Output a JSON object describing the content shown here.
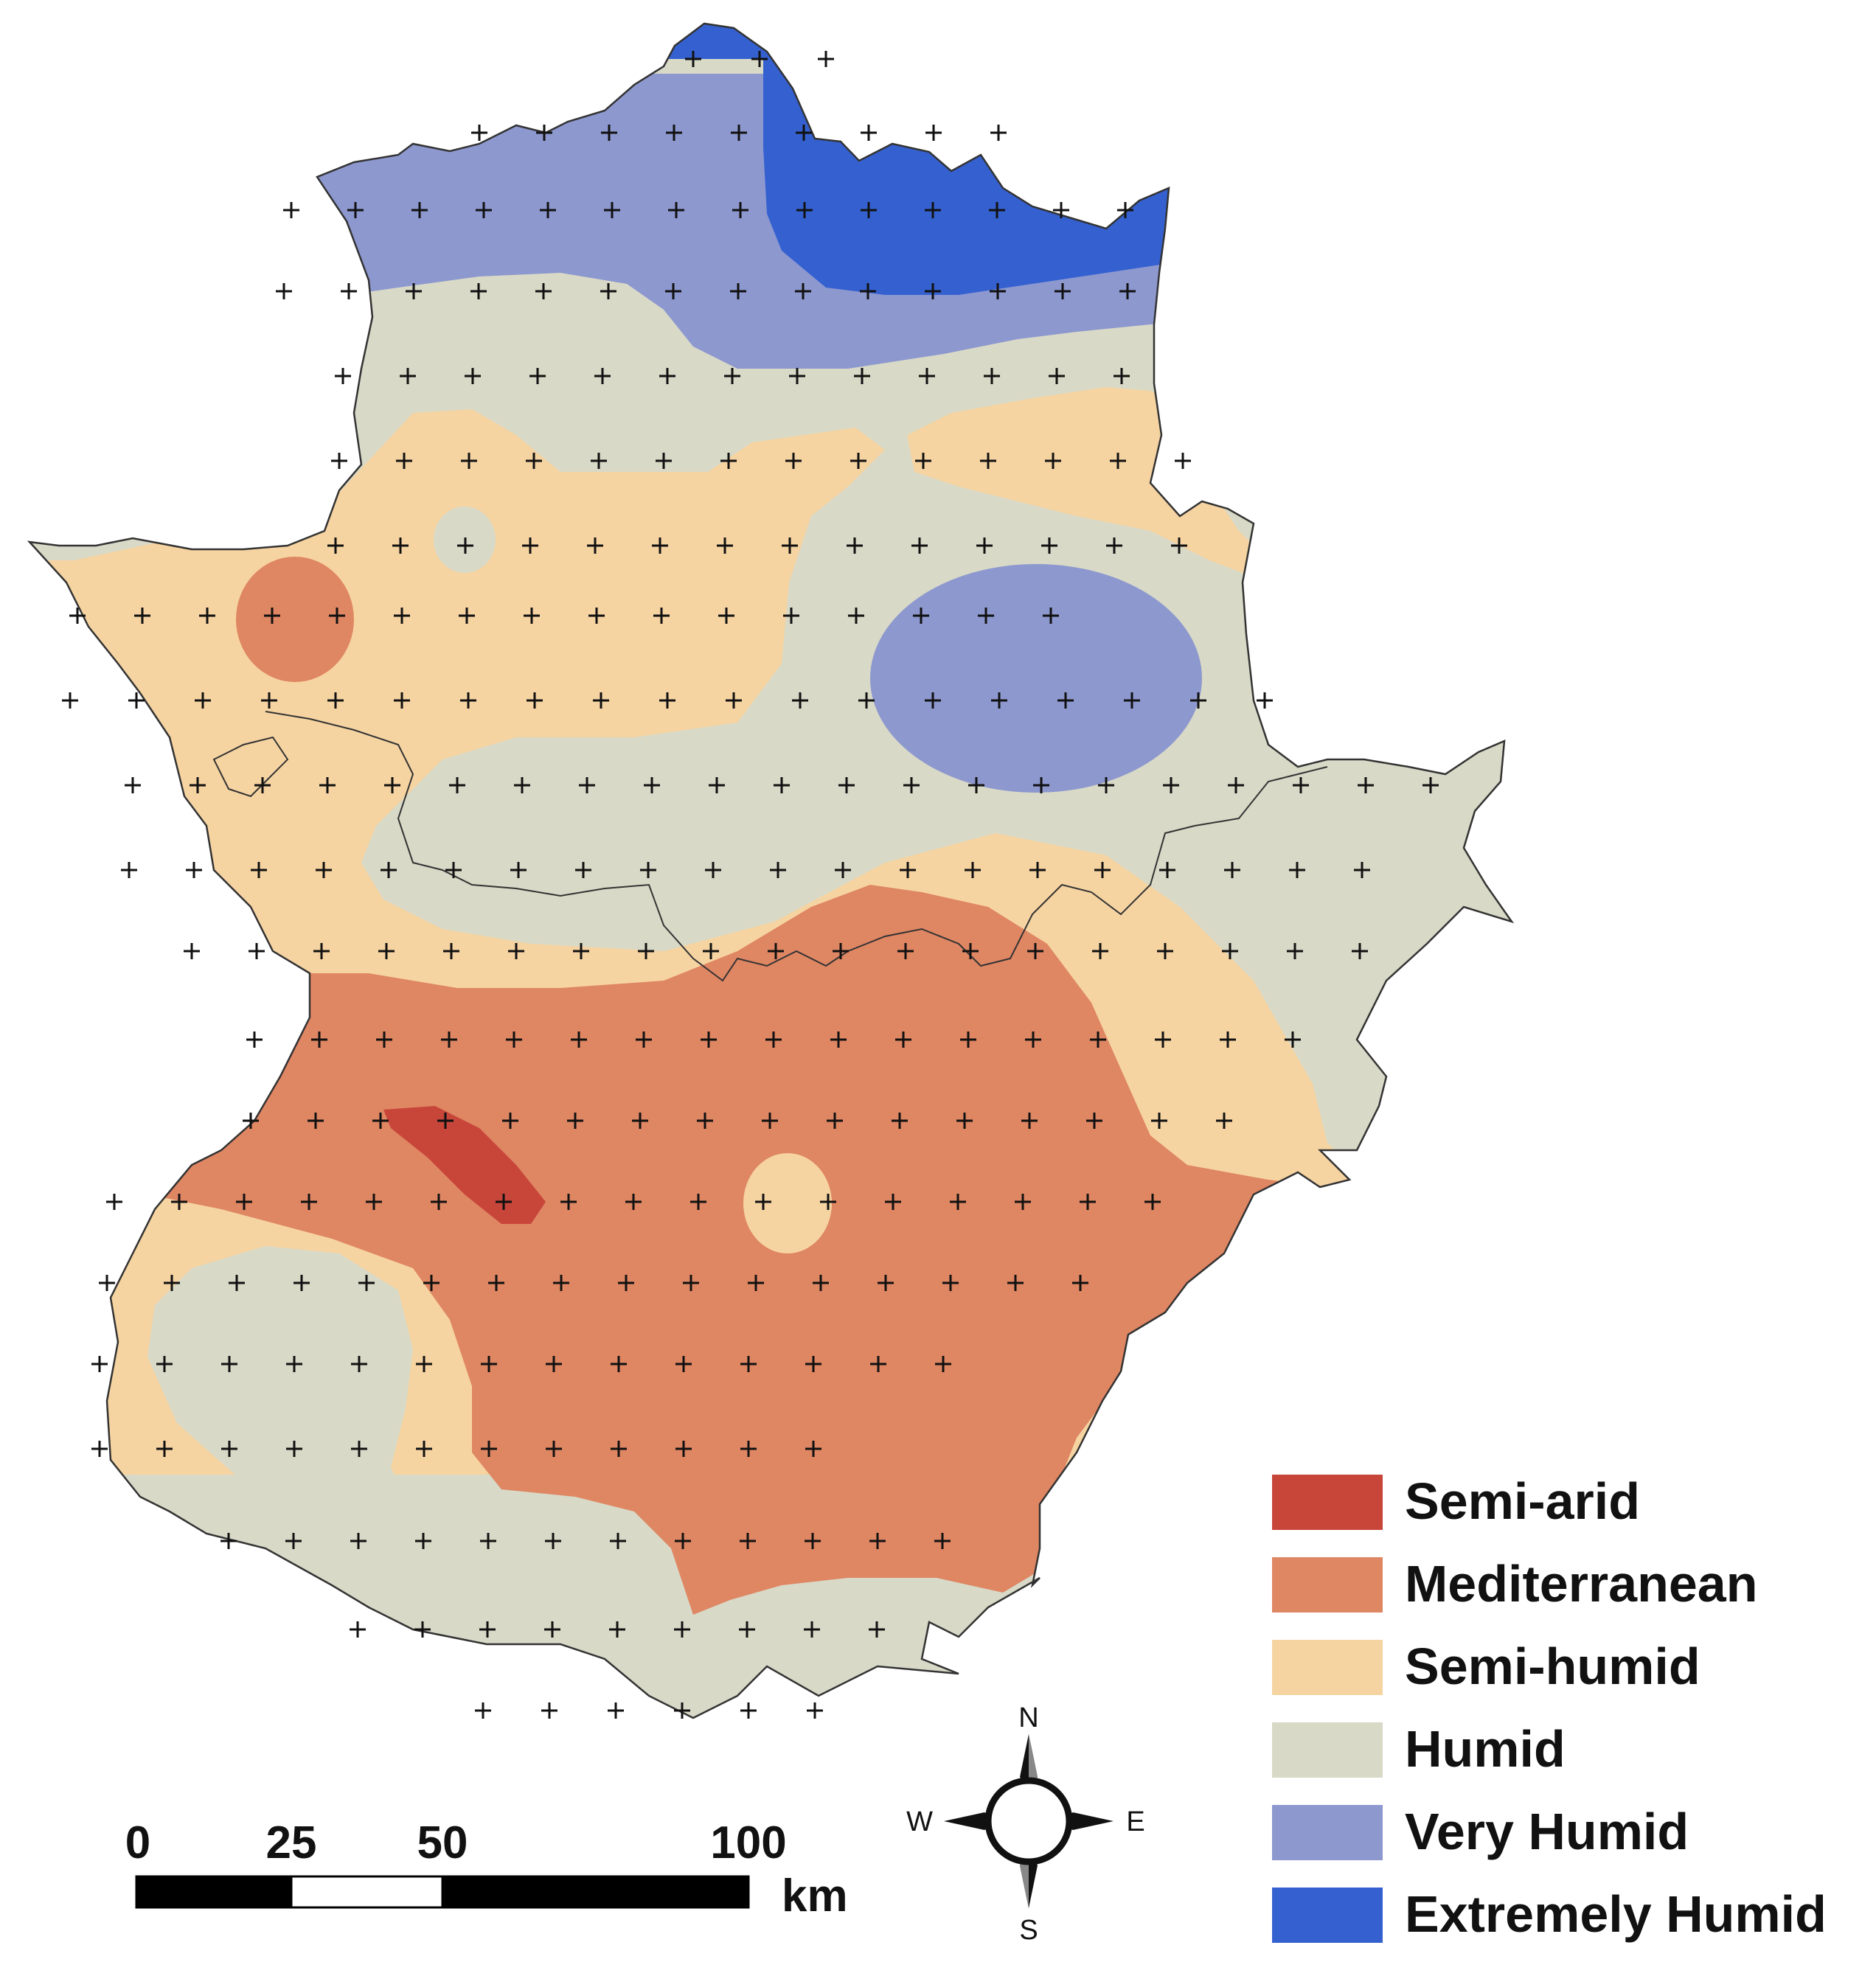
{
  "legend": {
    "items": [
      {
        "label": "Semi-arid",
        "color": "#c8453a"
      },
      {
        "label": "Mediterranean",
        "color": "#df8663"
      },
      {
        "label": "Semi-humid",
        "color": "#f6d4a2"
      },
      {
        "label": "Humid",
        "color": "#d8d9c7"
      },
      {
        "label": "Very Humid",
        "color": "#8d98cf"
      },
      {
        "label": "Extremely Humid",
        "color": "#3561d0"
      }
    ]
  },
  "scale_bar": {
    "ticks": [
      "0",
      "25",
      "50",
      "100"
    ],
    "unit": "km"
  },
  "compass": {
    "north": "N",
    "south": "S",
    "east": "E",
    "west": "W"
  },
  "colors": {
    "border": "#333333",
    "station_marker": "#111111"
  }
}
